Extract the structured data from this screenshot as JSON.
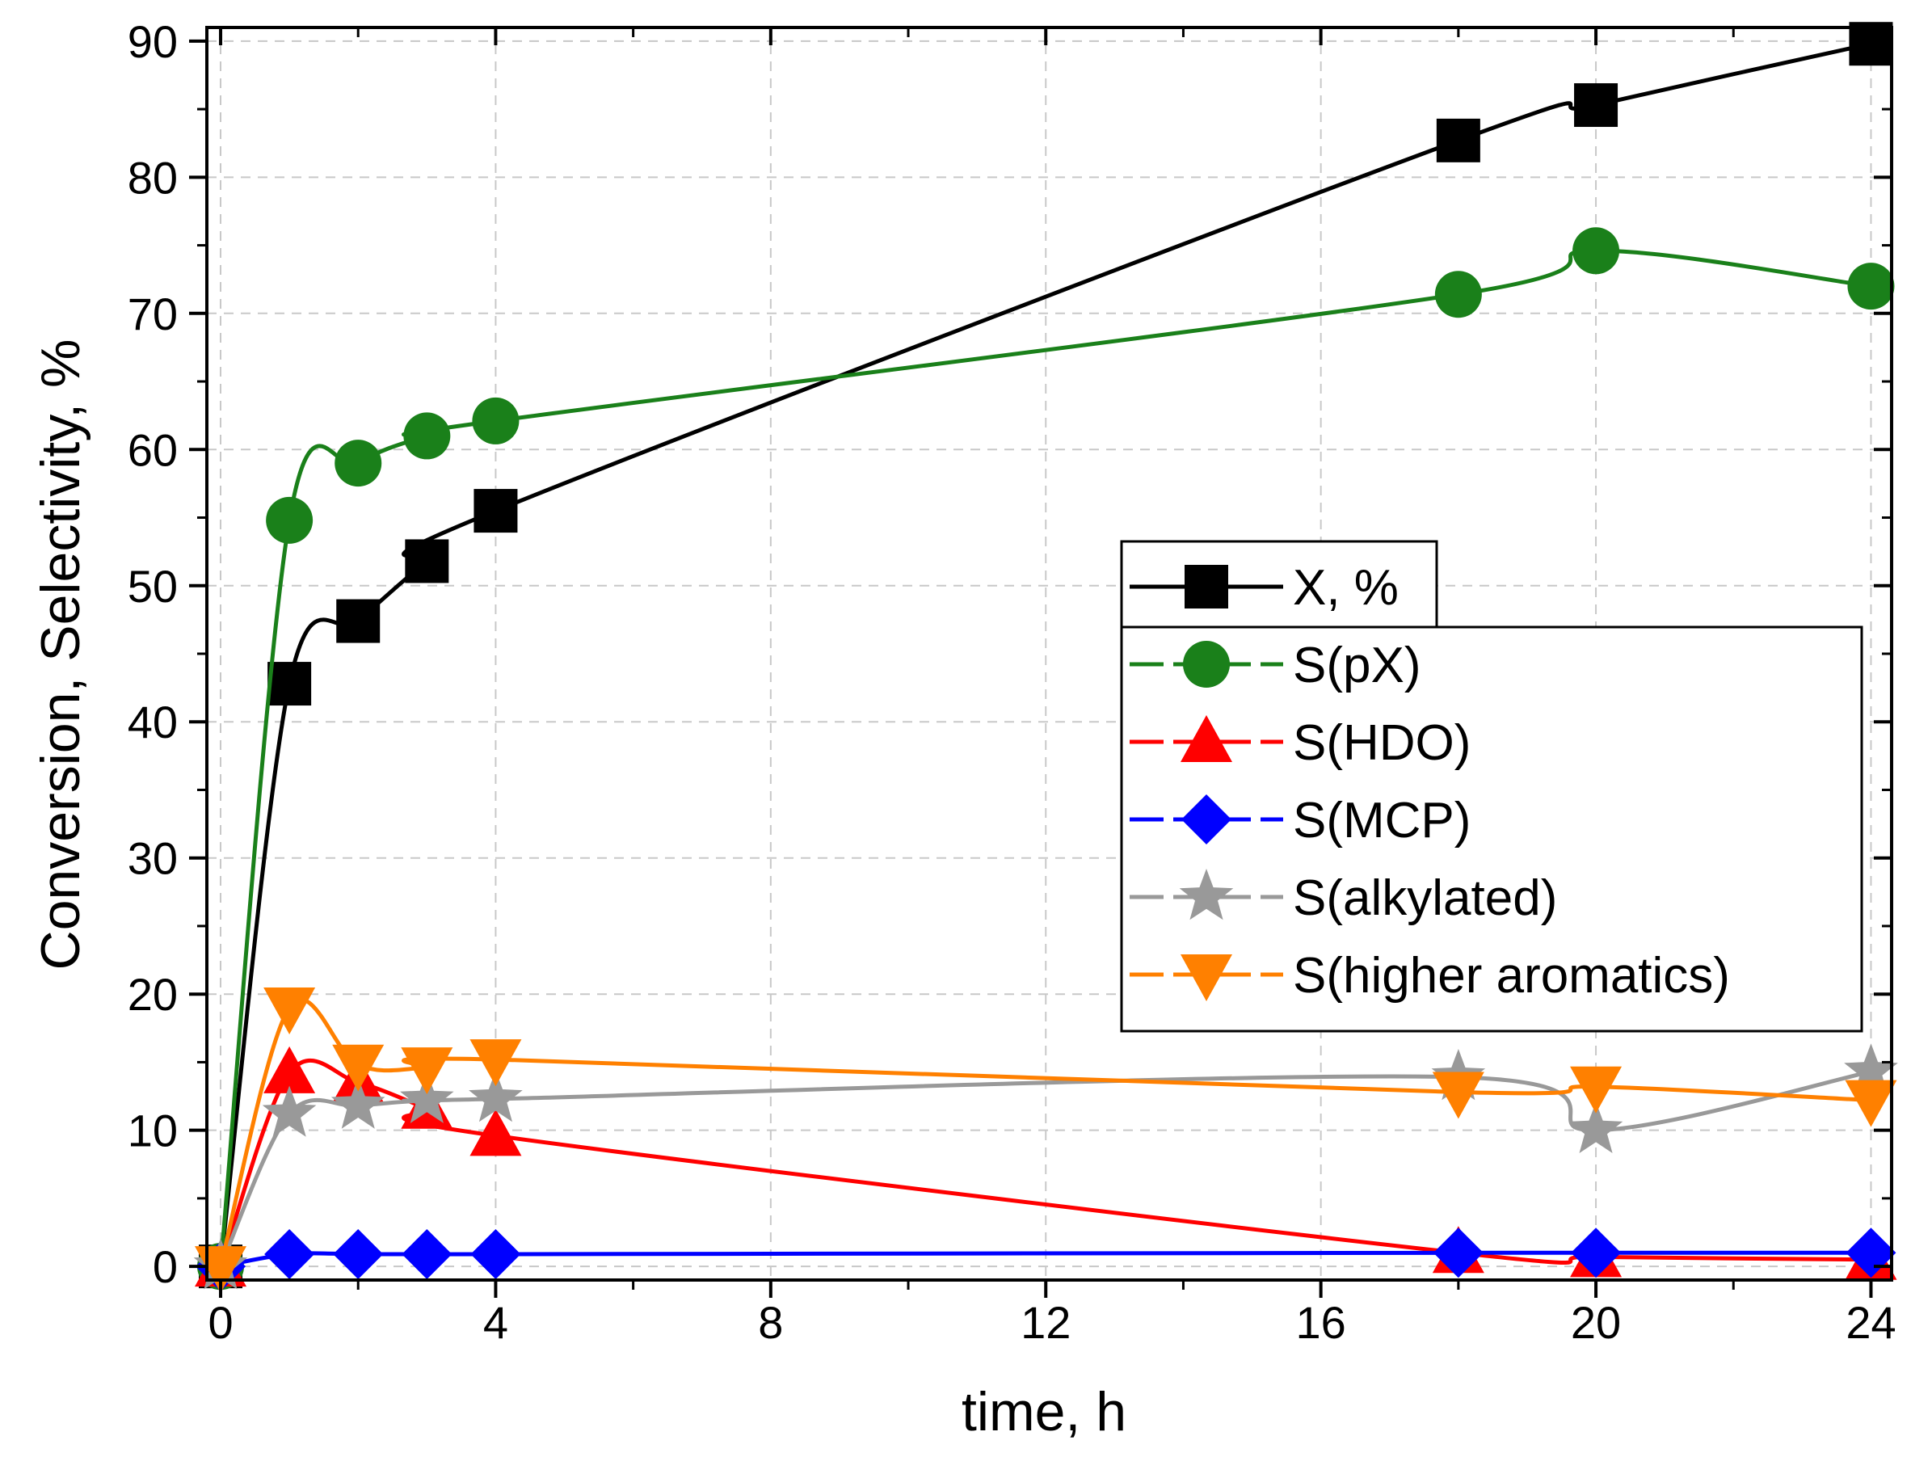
{
  "chart_data": {
    "type": "line",
    "xlabel": "time, h",
    "ylabel": "Conversion, Selectivity, %",
    "xlim": [
      -0.2,
      24.3
    ],
    "ylim": [
      -1,
      91
    ],
    "xticks": [
      0,
      4,
      8,
      12,
      16,
      20,
      24
    ],
    "xtick_labels": [
      "0",
      "4",
      "8",
      "12",
      "16",
      "20",
      "24"
    ],
    "yticks": [
      0,
      10,
      20,
      30,
      40,
      50,
      60,
      70,
      80,
      90
    ],
    "ytick_labels": [
      "0",
      "10",
      "20",
      "30",
      "40",
      "50",
      "60",
      "70",
      "80",
      "90"
    ],
    "grid": true,
    "legend_position": "center-right",
    "series": [
      {
        "name": "X, %",
        "color": "#000000",
        "marker": "square",
        "x": [
          0,
          1,
          2,
          3,
          4,
          18,
          20,
          24
        ],
        "y": [
          0,
          42.8,
          47.4,
          51.8,
          55.5,
          82.7,
          85.3,
          89.8
        ]
      },
      {
        "name": "S(pX)",
        "color": "#1a801a",
        "marker": "circle",
        "x": [
          0,
          1,
          2,
          3,
          4,
          18,
          20,
          24
        ],
        "y": [
          0,
          54.8,
          59.0,
          61.0,
          62.1,
          71.4,
          74.6,
          72.0
        ]
      },
      {
        "name": "S(HDO)",
        "color": "#ff0000",
        "marker": "triangle-up",
        "x": [
          0,
          1,
          2,
          3,
          4,
          18,
          20,
          24
        ],
        "y": [
          0,
          14.2,
          13.5,
          11.6,
          9.6,
          1.0,
          0.7,
          0.5
        ]
      },
      {
        "name": "S(MCP)",
        "color": "#0000ff",
        "marker": "diamond",
        "x": [
          0,
          1,
          2,
          3,
          4,
          18,
          20,
          24
        ],
        "y": [
          0,
          0.9,
          0.9,
          0.9,
          0.9,
          1.0,
          1.0,
          1.0
        ]
      },
      {
        "name": "S(alkylated)",
        "color": "#999999",
        "marker": "star",
        "x": [
          0,
          1,
          2,
          3,
          4,
          18,
          20,
          24
        ],
        "y": [
          0,
          11.2,
          11.8,
          12.2,
          12.3,
          13.9,
          10.0,
          14.3
        ]
      },
      {
        "name": "S(higher aromatics)",
        "color": "#ff8000",
        "marker": "triangle-down",
        "x": [
          0,
          1,
          2,
          3,
          4,
          18,
          20,
          24
        ],
        "y": [
          0,
          19.0,
          14.8,
          14.6,
          15.2,
          12.8,
          13.2,
          12.2
        ]
      }
    ]
  }
}
